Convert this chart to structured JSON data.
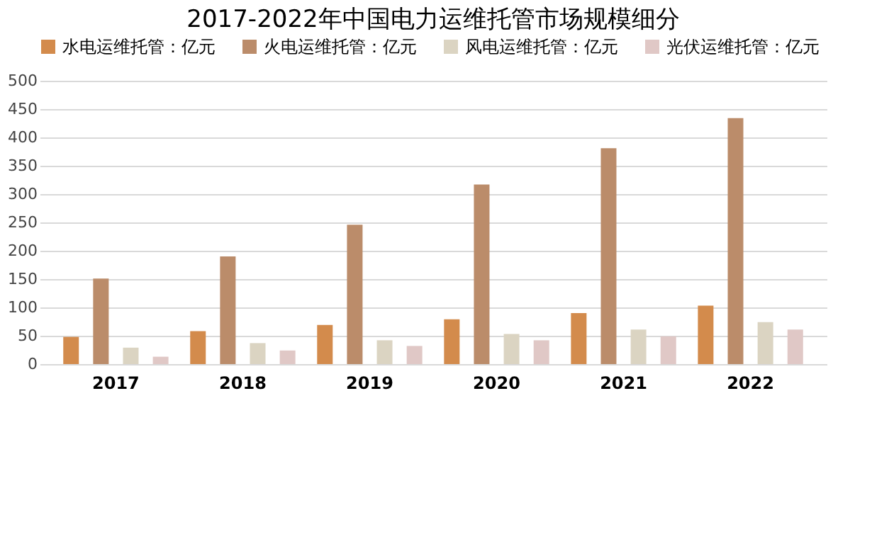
{
  "chart_data": {
    "type": "bar",
    "title": "2017-2022年中国电力运维托管市场规模细分",
    "categories": [
      "2017",
      "2018",
      "2019",
      "2020",
      "2021",
      "2022"
    ],
    "series": [
      {
        "name": "水电运维托管：亿元",
        "color": "#d38b4c",
        "values": [
          48,
          58,
          69,
          79,
          90,
          103
        ]
      },
      {
        "name": "火电运维托管：亿元",
        "color": "#bb8c6a",
        "values": [
          151,
          190,
          246,
          317,
          381,
          434
        ]
      },
      {
        "name": "风电运维托管：亿元",
        "color": "#dbd4c2",
        "values": [
          29,
          37,
          42,
          53,
          61,
          74
        ]
      },
      {
        "name": "光伏运维托管：亿元",
        "color": "#e0c8c6",
        "values": [
          13,
          24,
          32,
          42,
          49,
          61
        ]
      }
    ],
    "ylim": [
      0,
      500
    ],
    "yticks": [
      0,
      50,
      100,
      150,
      200,
      250,
      300,
      350,
      400,
      450,
      500
    ],
    "grid": "y",
    "legend": "top left"
  }
}
